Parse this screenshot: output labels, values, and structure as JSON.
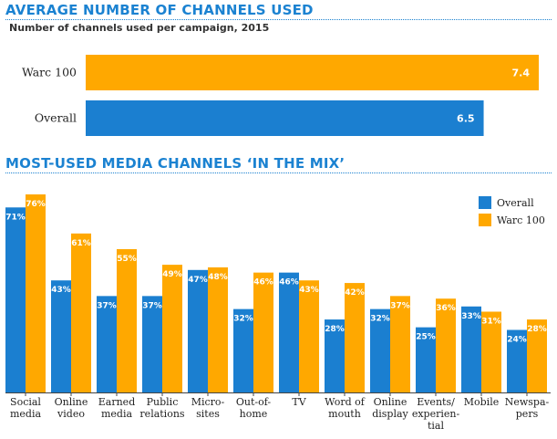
{
  "colors": {
    "accent": "#1b82d1",
    "overall": "#1b7fd0",
    "warc100": "#ffa800",
    "axis": "#444444"
  },
  "chart_data": [
    {
      "type": "bar",
      "orientation": "horizontal",
      "title": "AVERAGE NUMBER OF CHANNELS USED",
      "subtitle": "Number of channels used per campaign, 2015",
      "categories": [
        "Warc 100",
        "Overall"
      ],
      "values": [
        7.4,
        6.5
      ],
      "value_labels": [
        "7.4",
        "6.5"
      ],
      "xlim": [
        0,
        7.4
      ],
      "grid": false
    },
    {
      "type": "bar",
      "orientation": "vertical",
      "title": "MOST-USED MEDIA CHANNELS ‘IN THE MIX’",
      "categories": [
        [
          "Social",
          "media"
        ],
        [
          "Online",
          "video"
        ],
        [
          "Earned",
          "media"
        ],
        [
          "Public",
          "relations"
        ],
        [
          "Micro-",
          "sites"
        ],
        [
          "Out-of-",
          "home"
        ],
        [
          "TV"
        ],
        [
          "Word of",
          "mouth"
        ],
        [
          "Online",
          "display"
        ],
        [
          "Events/",
          "experien-",
          "tial"
        ],
        [
          "Mobile"
        ],
        [
          "Newspa-",
          "pers"
        ]
      ],
      "series": [
        {
          "name": "Overall",
          "values": [
            71,
            43,
            37,
            37,
            47,
            32,
            46,
            28,
            32,
            25,
            33,
            24
          ]
        },
        {
          "name": "Warc 100",
          "values": [
            76,
            61,
            55,
            49,
            48,
            46,
            43,
            42,
            37,
            36,
            31,
            28
          ]
        }
      ],
      "value_format": "{v}%",
      "ylim": [
        0,
        76
      ],
      "legend": "top-right",
      "grid": false
    }
  ]
}
